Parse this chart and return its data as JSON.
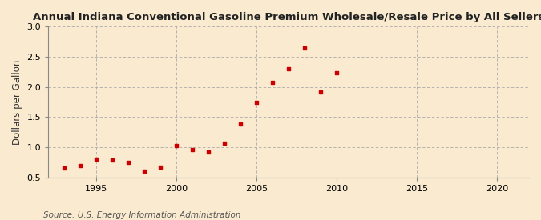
{
  "title": "Annual Indiana Conventional Gasoline Premium Wholesale/Resale Price by All Sellers",
  "ylabel": "Dollars per Gallon",
  "source": "Source: U.S. Energy Information Administration",
  "background_color": "#faebd0",
  "marker_color": "#cc0000",
  "years": [
    1993,
    1994,
    1995,
    1996,
    1997,
    1998,
    1999,
    2000,
    2001,
    2002,
    2003,
    2004,
    2005,
    2006,
    2007,
    2008,
    2009,
    2010
  ],
  "values": [
    0.65,
    0.69,
    0.8,
    0.79,
    0.75,
    0.6,
    0.67,
    1.03,
    0.96,
    0.92,
    1.07,
    1.38,
    1.75,
    2.08,
    2.3,
    2.65,
    1.91,
    2.24
  ],
  "xlim": [
    1992,
    2022
  ],
  "ylim": [
    0.5,
    3.0
  ],
  "xticks": [
    1995,
    2000,
    2005,
    2010,
    2015,
    2020
  ],
  "yticks": [
    0.5,
    1.0,
    1.5,
    2.0,
    2.5,
    3.0
  ],
  "grid_color": "#aaaaaa",
  "title_fontsize": 9.5,
  "label_fontsize": 8.5,
  "tick_fontsize": 8,
  "source_fontsize": 7.5
}
